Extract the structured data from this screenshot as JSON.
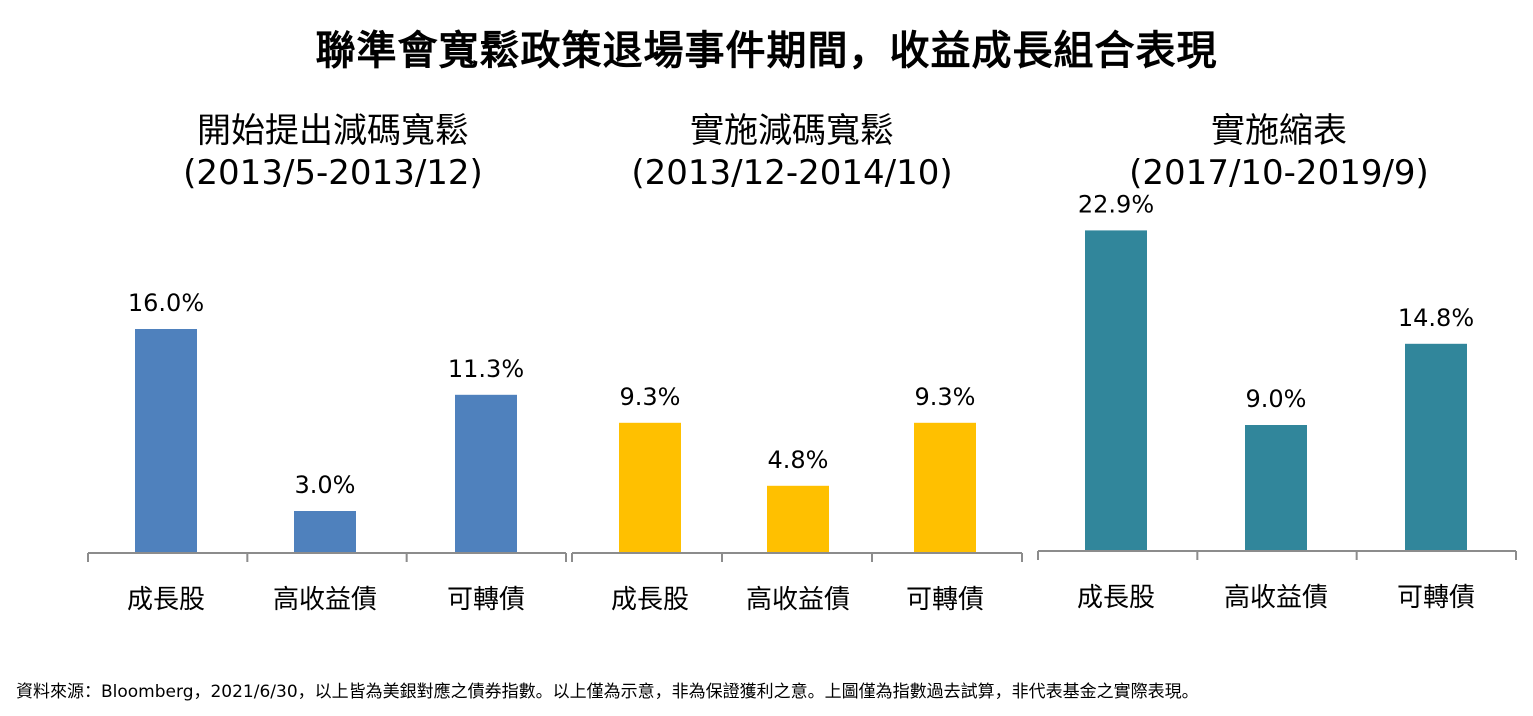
{
  "title": "聯準會寬鬆政策退場事件期間，收益成長組合表現",
  "footnote": "資料來源：Bloomberg，2021/6/30，以上皆為美銀對應之債券指數。以上僅為示意，非為保證獲利之意。上圖僅為指數過去試算，非代表基金之實際表現。",
  "chart_data": [
    {
      "type": "bar",
      "title": "開始提出減碼寬鬆",
      "subtitle": "(2013/5-2013/12)",
      "categories": [
        "成長股",
        "高收益債",
        "可轉債"
      ],
      "values": [
        16.0,
        3.0,
        11.3
      ],
      "value_labels": [
        "16.0%",
        "3.0%",
        "11.3%"
      ],
      "color": "#4f81bd",
      "ylim": [
        0,
        25
      ],
      "xlabel": "",
      "ylabel": "",
      "grid": false
    },
    {
      "type": "bar",
      "title": "實施減碼寬鬆",
      "subtitle": "(2013/12-2014/10)",
      "categories": [
        "成長股",
        "高收益債",
        "可轉債"
      ],
      "values": [
        9.3,
        4.8,
        9.3
      ],
      "value_labels": [
        "9.3%",
        "4.8%",
        "9.3%"
      ],
      "color": "#ffc000",
      "ylim": [
        0,
        25
      ],
      "xlabel": "",
      "ylabel": "",
      "grid": false
    },
    {
      "type": "bar",
      "title": "實施縮表",
      "subtitle": "(2017/10-2019/9)",
      "categories": [
        "成長股",
        "高收益債",
        "可轉債"
      ],
      "values": [
        22.9,
        9.0,
        14.8
      ],
      "value_labels": [
        "22.9%",
        "9.0%",
        "14.8%"
      ],
      "color": "#31869b",
      "ylim": [
        0,
        25
      ],
      "xlabel": "",
      "ylabel": "",
      "grid": false
    }
  ]
}
